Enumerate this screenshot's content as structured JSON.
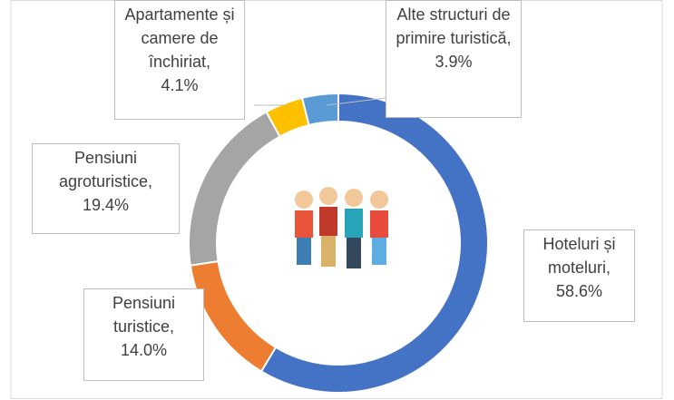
{
  "chart_data": {
    "type": "donut",
    "categories": [
      "Hoteluri și moteluri",
      "Pensiuni turistice",
      "Pensiuni agroturistice",
      "Apartamente și camere de închiriat",
      "Alte structuri de primire turistică"
    ],
    "values": [
      58.6,
      14.0,
      19.4,
      4.1,
      3.9
    ],
    "value_labels": [
      "58.6%",
      "14.0%",
      "19.4%",
      "4.1%",
      "3.9%"
    ],
    "separator": ",",
    "colors": [
      "#4472c4",
      "#ed7d31",
      "#a5a5a5",
      "#ffc000",
      "#5b9bd5"
    ]
  }
}
